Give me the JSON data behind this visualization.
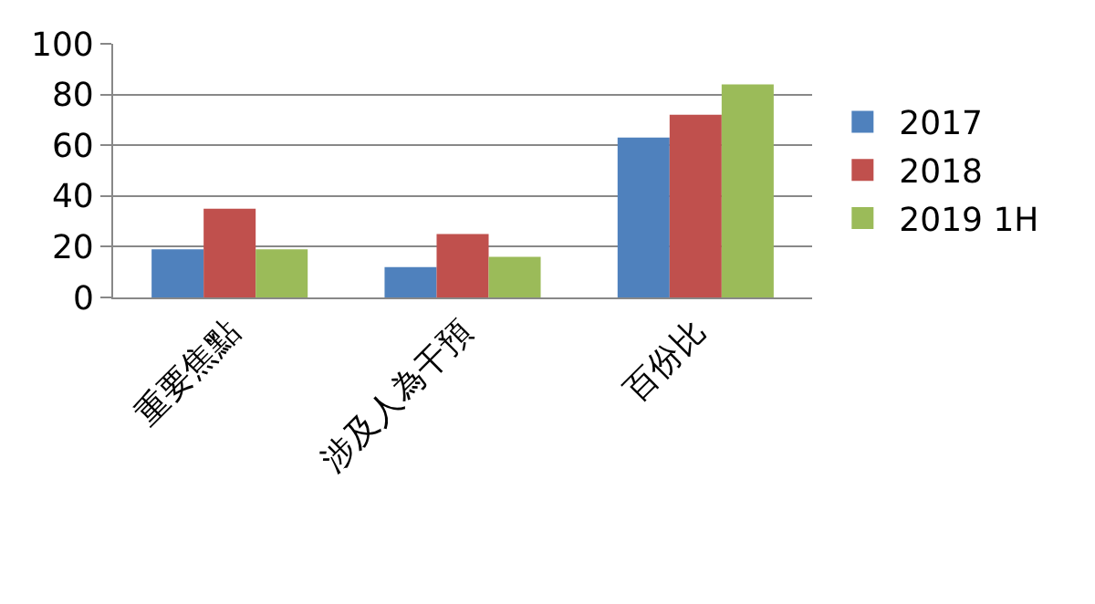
{
  "chart_data": {
    "type": "bar",
    "categories": [
      "重要焦點",
      "涉及人為干預",
      "百份比"
    ],
    "series": [
      {
        "name": "2017",
        "color": "#4f81bd",
        "values": [
          19,
          12,
          63
        ]
      },
      {
        "name": "2018",
        "color": "#c0504d",
        "values": [
          35,
          25,
          72
        ]
      },
      {
        "name": "2019 1H",
        "color": "#9bbb59",
        "values": [
          19,
          16,
          84
        ]
      }
    ],
    "ylim": [
      0,
      100
    ],
    "yticks": [
      0,
      20,
      40,
      60,
      80,
      100
    ],
    "grid": "y",
    "legend": "right"
  }
}
